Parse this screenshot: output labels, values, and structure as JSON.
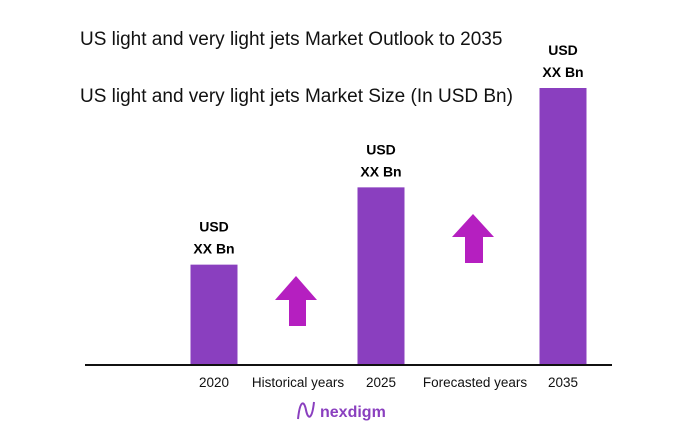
{
  "titles": {
    "main": "US light and very light jets Market Outlook to 2035",
    "sub": "US light and very light jets Market Size (In USD Bn)"
  },
  "chart_data": {
    "type": "bar",
    "categories": [
      "2020",
      "2025",
      "2035"
    ],
    "values_relative": [
      36,
      64,
      100
    ],
    "data_labels": [
      [
        "USD",
        "XX Bn"
      ],
      [
        "USD",
        "XX Bn"
      ],
      [
        "USD",
        "XX Bn"
      ]
    ],
    "annotations": [
      "Historical years",
      "Forecasted years"
    ],
    "grid": false,
    "colors": {
      "bar": "#8a3fbf",
      "arrow": "#b51fc0",
      "axis": "#111111"
    }
  },
  "logo": {
    "text": "nexdigm"
  }
}
